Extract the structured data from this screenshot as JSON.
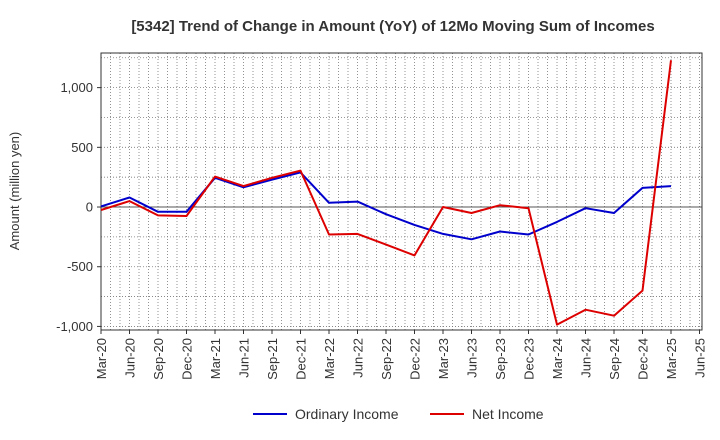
{
  "chart_data": {
    "type": "line",
    "title": "[5342]  Trend of Change in Amount (YoY) of 12Mo Moving Sum of Incomes",
    "xlabel": "",
    "ylabel": "Amount (million yen)",
    "ylim": [
      -1030,
      1290
    ],
    "yticks": [
      -1000,
      -500,
      0,
      500,
      1000
    ],
    "ytick_labels": [
      "-1,000",
      "-500",
      "0",
      "500",
      "1,000"
    ],
    "categories": [
      "Mar-20",
      "Jun-20",
      "Sep-20",
      "Dec-20",
      "Mar-21",
      "Jun-21",
      "Sep-21",
      "Dec-21",
      "Mar-22",
      "Jun-22",
      "Sep-22",
      "Dec-22",
      "Mar-23",
      "Jun-23",
      "Sep-23",
      "Dec-23",
      "Mar-24",
      "Jun-24",
      "Sep-24",
      "Dec-24",
      "Mar-25",
      "Jun-25"
    ],
    "grid": true,
    "legend_position": "bottom-center",
    "series": [
      {
        "name": "Ordinary Income",
        "color": "#0000cc",
        "values": [
          5,
          80,
          -40,
          -40,
          245,
          165,
          230,
          290,
          35,
          45,
          -60,
          -150,
          -225,
          -270,
          -205,
          -230,
          -125,
          -10,
          -50,
          160,
          175,
          null
        ]
      },
      {
        "name": "Net Income",
        "color": "#dd0000",
        "values": [
          -25,
          50,
          -70,
          -75,
          255,
          175,
          245,
          305,
          -230,
          -225,
          -315,
          -405,
          0,
          -50,
          15,
          -10,
          -985,
          -860,
          -910,
          -700,
          1230,
          null
        ]
      }
    ]
  }
}
